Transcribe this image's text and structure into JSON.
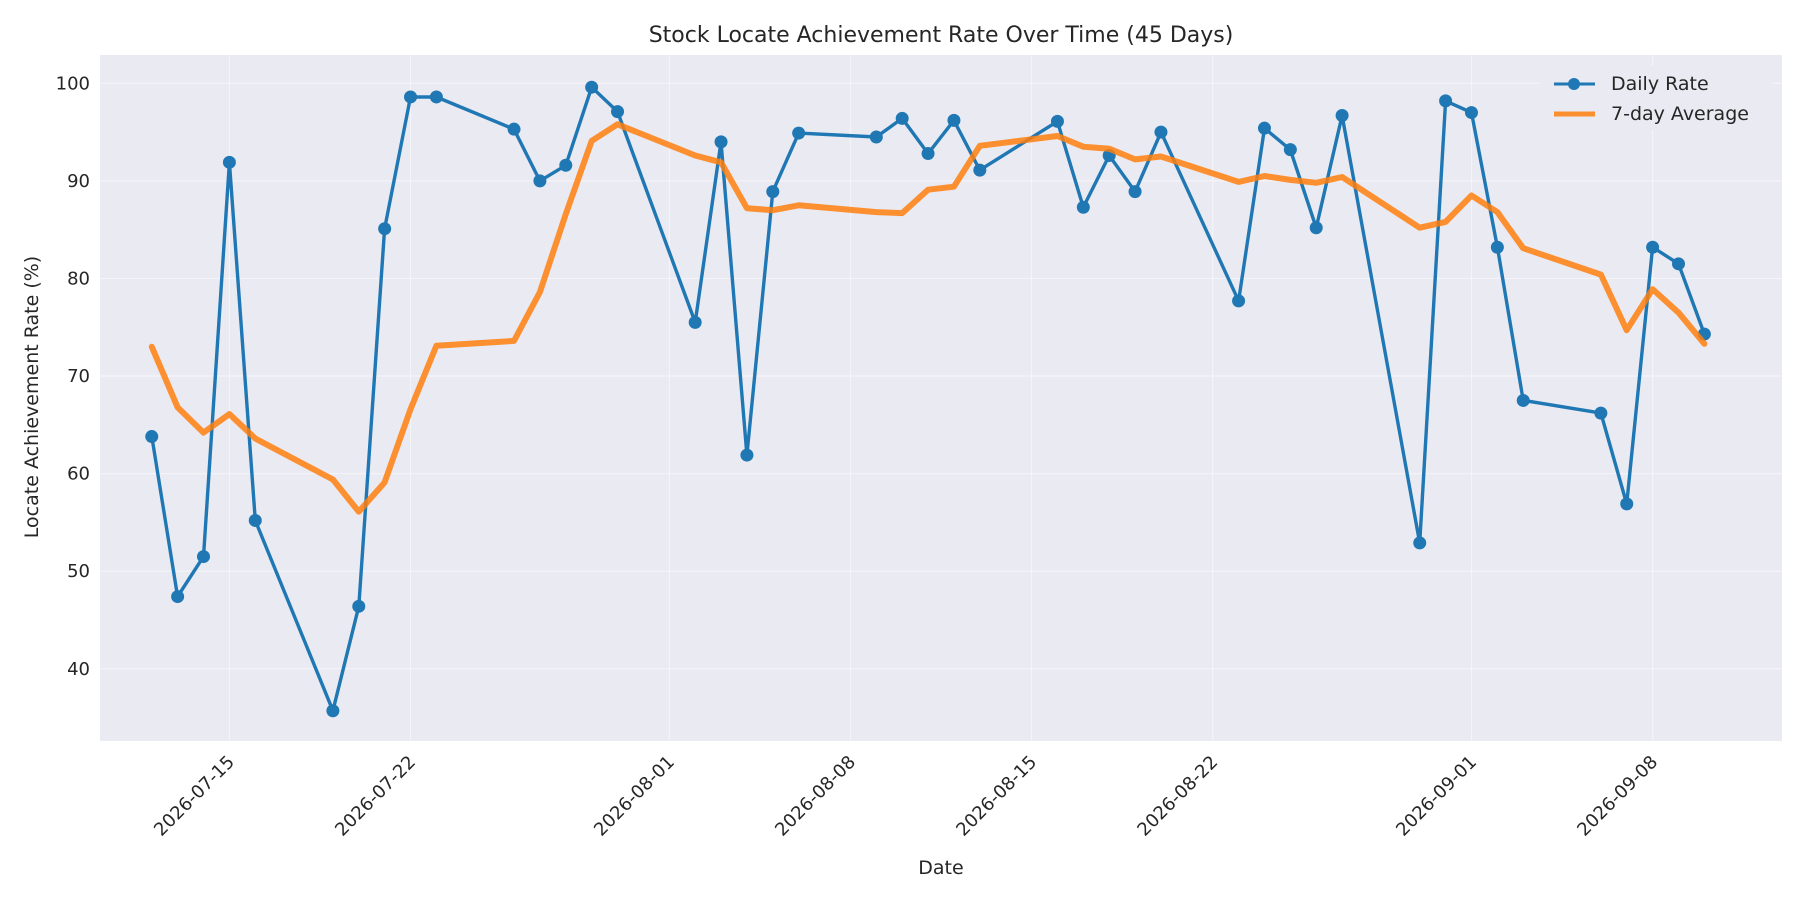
{
  "chart_data": {
    "type": "line",
    "title": "Stock Locate Achievement Rate Over Time (45 Days)",
    "xlabel": "Date",
    "ylabel": "Locate Achievement Rate (%)",
    "xlim": [
      "2026-07-10",
      "2026-09-13"
    ],
    "ylim": [
      32.6,
      102.9
    ],
    "x_ticks": [
      "2026-07-15",
      "2026-07-22",
      "2026-08-01",
      "2026-08-08",
      "2026-08-15",
      "2026-08-22",
      "2026-09-01",
      "2026-09-08"
    ],
    "y_ticks": [
      40,
      50,
      60,
      70,
      80,
      90,
      100
    ],
    "grid": true,
    "legend_position": "top-right",
    "x": [
      "2026-07-12",
      "2026-07-13",
      "2026-07-14",
      "2026-07-15",
      "2026-07-16",
      "2026-07-19",
      "2026-07-20",
      "2026-07-21",
      "2026-07-22",
      "2026-07-23",
      "2026-07-26",
      "2026-07-27",
      "2026-07-28",
      "2026-07-29",
      "2026-07-30",
      "2026-08-02",
      "2026-08-03",
      "2026-08-04",
      "2026-08-05",
      "2026-08-06",
      "2026-08-09",
      "2026-08-10",
      "2026-08-11",
      "2026-08-12",
      "2026-08-13",
      "2026-08-16",
      "2026-08-17",
      "2026-08-18",
      "2026-08-19",
      "2026-08-20",
      "2026-08-23",
      "2026-08-24",
      "2026-08-25",
      "2026-08-26",
      "2026-08-27",
      "2026-08-30",
      "2026-08-31",
      "2026-09-01",
      "2026-09-02",
      "2026-09-03",
      "2026-09-06",
      "2026-09-07",
      "2026-09-08",
      "2026-09-09",
      "2026-09-10"
    ],
    "series": [
      {
        "name": "Daily Rate",
        "color": "#1f77b4",
        "marker": "circle",
        "values": [
          63.8,
          47.4,
          51.5,
          91.9,
          55.2,
          35.7,
          46.4,
          85.1,
          98.6,
          98.6,
          95.3,
          90.0,
          91.6,
          99.6,
          97.1,
          75.5,
          94.0,
          61.9,
          88.9,
          94.9,
          94.5,
          96.4,
          92.8,
          96.2,
          91.1,
          96.1,
          87.3,
          92.6,
          88.9,
          95.0,
          77.7,
          95.4,
          93.2,
          85.2,
          96.7,
          52.9,
          98.2,
          97.0,
          83.2,
          67.5,
          66.2,
          56.9,
          83.2,
          81.5,
          74.3
        ]
      },
      {
        "name": "7-day Average",
        "color": "#ff7f0e",
        "marker": "none",
        "values": [
          73.0,
          66.8,
          64.2,
          66.1,
          63.6,
          59.4,
          56.1,
          59.1,
          66.6,
          73.1,
          73.6,
          78.6,
          86.6,
          94.1,
          95.8,
          92.6,
          91.9,
          87.2,
          87.0,
          87.5,
          86.8,
          86.7,
          89.1,
          89.4,
          93.6,
          94.6,
          93.5,
          93.3,
          92.2,
          92.5,
          89.9,
          90.5,
          90.1,
          89.8,
          90.4,
          85.2,
          85.8,
          88.5,
          86.8,
          83.1,
          80.4,
          74.7,
          78.9,
          76.5,
          73.3
        ]
      }
    ]
  }
}
